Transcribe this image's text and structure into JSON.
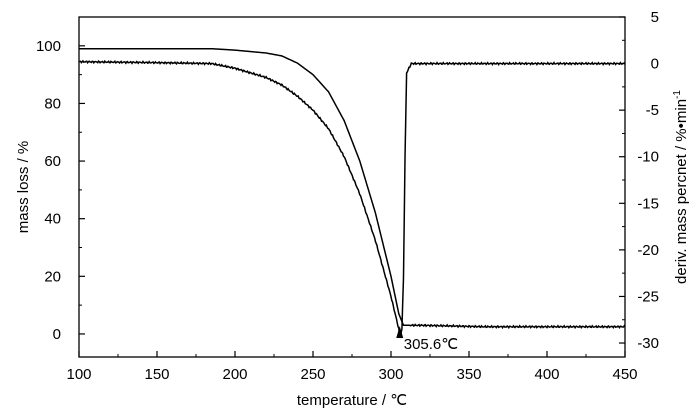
{
  "chart_data": {
    "type": "line",
    "xlabel": "temperature / ℃",
    "ylabel": "mass loss / %",
    "y2label_main": "deriv. mass percnet / %•min",
    "y2label_sup": "-1",
    "xlim": [
      100,
      450
    ],
    "ylim": [
      -8,
      110
    ],
    "y2lim": [
      -31.5,
      5
    ],
    "grid": false,
    "x_ticks": [
      100,
      150,
      200,
      250,
      300,
      350,
      400,
      450
    ],
    "y_ticks": [
      0,
      20,
      40,
      60,
      80,
      100
    ],
    "y2_ticks": [
      5,
      0,
      -5,
      -10,
      -15,
      -20,
      -25,
      -30
    ],
    "annotation": {
      "text": "305.6℃",
      "x": 305.6
    },
    "series": [
      {
        "axis": "left",
        "x": [
          100,
          150,
          185,
          200,
          220,
          230,
          240,
          250,
          260,
          270,
          280,
          290,
          300,
          305,
          308,
          310,
          320,
          360,
          400,
          450
        ],
        "y": [
          99,
          99,
          99,
          98.5,
          97.5,
          96.5,
          94,
          90,
          84,
          74,
          60,
          42,
          20,
          7,
          3,
          3,
          3,
          2.5,
          2.5,
          2.5
        ]
      },
      {
        "axis": "right",
        "x": [
          100,
          150,
          185,
          200,
          220,
          230,
          240,
          250,
          260,
          270,
          280,
          290,
          300,
          305,
          305.6,
          307,
          308,
          309,
          310,
          313,
          350,
          400,
          450
        ],
        "y": [
          0.2,
          0.1,
          0,
          -0.5,
          -1.5,
          -2.3,
          -3.5,
          -5,
          -7,
          -10,
          -14,
          -19,
          -25,
          -28.5,
          -29.5,
          -28.5,
          -23,
          -10,
          -1,
          0,
          0,
          0,
          0
        ]
      }
    ]
  }
}
